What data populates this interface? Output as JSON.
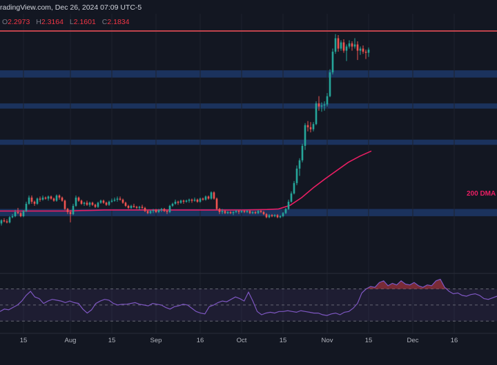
{
  "header": {
    "source": "radingView.com, Dec 26, 2024 07:09 UTC-5",
    "ohlc": [
      {
        "k": "O",
        "v": "2.2973"
      },
      {
        "k": "H",
        "v": "2.3164"
      },
      {
        "k": "L",
        "v": "2.1601"
      },
      {
        "k": "C",
        "v": "2.1834"
      }
    ]
  },
  "colors": {
    "background": "#131722",
    "up": "#26a69a",
    "down": "#ef5350",
    "zone": "#1e3a6e",
    "resistance_line": "#c2444d",
    "ma": "#e91e63",
    "rsi": "#7e57c2",
    "rsi_overbought_fill": "#8b2f3a"
  },
  "chart_data": {
    "type": "candlestick",
    "title": "",
    "ylabel": "",
    "ylim": [
      0.2,
      2.45
    ],
    "xlim": [
      0,
      180
    ],
    "x_ticks": [
      {
        "label": "15",
        "i": 8
      },
      {
        "label": "Aug",
        "i": 25
      },
      {
        "label": "15",
        "i": 40
      },
      {
        "label": "Sep",
        "i": 56
      },
      {
        "label": "16",
        "i": 72
      },
      {
        "label": "Oct",
        "i": 87
      },
      {
        "label": "15",
        "i": 102
      },
      {
        "label": "Nov",
        "i": 118
      },
      {
        "label": "15",
        "i": 133
      },
      {
        "label": "Dec",
        "i": 149
      },
      {
        "label": "16",
        "i": 164
      }
    ],
    "horizontal_lines": [
      2.35
    ],
    "zones": [
      {
        "from": 1.9,
        "to": 1.97
      },
      {
        "from": 1.6,
        "to": 1.65
      },
      {
        "from": 1.25,
        "to": 1.3
      },
      {
        "from": 0.56,
        "to": 0.63
      }
    ],
    "moving_average": {
      "label": "200 DMA",
      "values": [
        0.61,
        0.61,
        0.61,
        0.61,
        0.61,
        0.61,
        0.61,
        0.615,
        0.617,
        0.62,
        0.62,
        0.62,
        0.62,
        0.62,
        0.62,
        0.62,
        0.62,
        0.62,
        0.62,
        0.62,
        0.62,
        0.62,
        0.622,
        0.625,
        0.63,
        0.665,
        0.74,
        0.835,
        0.92,
        1.0,
        1.08,
        1.14,
        1.19
      ]
    },
    "ohlc": [
      [
        0.49,
        0.53,
        0.47,
        0.52
      ],
      [
        0.52,
        0.54,
        0.5,
        0.51
      ],
      [
        0.51,
        0.53,
        0.49,
        0.5
      ],
      [
        0.5,
        0.56,
        0.49,
        0.55
      ],
      [
        0.55,
        0.58,
        0.54,
        0.56
      ],
      [
        0.56,
        0.62,
        0.55,
        0.6
      ],
      [
        0.6,
        0.64,
        0.58,
        0.59
      ],
      [
        0.59,
        0.6,
        0.55,
        0.56
      ],
      [
        0.56,
        0.62,
        0.55,
        0.61
      ],
      [
        0.61,
        0.7,
        0.6,
        0.68
      ],
      [
        0.68,
        0.76,
        0.67,
        0.74
      ],
      [
        0.74,
        0.76,
        0.68,
        0.7
      ],
      [
        0.7,
        0.71,
        0.66,
        0.68
      ],
      [
        0.68,
        0.74,
        0.67,
        0.73
      ],
      [
        0.73,
        0.75,
        0.7,
        0.72
      ],
      [
        0.72,
        0.76,
        0.71,
        0.74
      ],
      [
        0.74,
        0.75,
        0.72,
        0.73
      ],
      [
        0.73,
        0.76,
        0.71,
        0.75
      ],
      [
        0.75,
        0.76,
        0.72,
        0.73
      ],
      [
        0.73,
        0.74,
        0.7,
        0.71
      ],
      [
        0.71,
        0.77,
        0.7,
        0.76
      ],
      [
        0.76,
        0.77,
        0.72,
        0.74
      ],
      [
        0.74,
        0.75,
        0.7,
        0.71
      ],
      [
        0.71,
        0.72,
        0.62,
        0.63
      ],
      [
        0.63,
        0.64,
        0.58,
        0.6
      ],
      [
        0.6,
        0.62,
        0.5,
        0.58
      ],
      [
        0.58,
        0.68,
        0.57,
        0.66
      ],
      [
        0.66,
        0.76,
        0.65,
        0.74
      ],
      [
        0.74,
        0.75,
        0.7,
        0.71
      ],
      [
        0.71,
        0.72,
        0.67,
        0.68
      ],
      [
        0.68,
        0.7,
        0.66,
        0.69
      ],
      [
        0.69,
        0.71,
        0.66,
        0.67
      ],
      [
        0.67,
        0.7,
        0.65,
        0.69
      ],
      [
        0.69,
        0.7,
        0.66,
        0.67
      ],
      [
        0.67,
        0.68,
        0.64,
        0.65
      ],
      [
        0.65,
        0.7,
        0.64,
        0.69
      ],
      [
        0.69,
        0.72,
        0.68,
        0.71
      ],
      [
        0.71,
        0.72,
        0.68,
        0.69
      ],
      [
        0.69,
        0.7,
        0.66,
        0.67
      ],
      [
        0.67,
        0.71,
        0.66,
        0.7
      ],
      [
        0.7,
        0.73,
        0.69,
        0.71
      ],
      [
        0.71,
        0.74,
        0.7,
        0.72
      ],
      [
        0.72,
        0.75,
        0.7,
        0.73
      ],
      [
        0.73,
        0.75,
        0.71,
        0.72
      ],
      [
        0.72,
        0.73,
        0.68,
        0.69
      ],
      [
        0.69,
        0.7,
        0.65,
        0.66
      ],
      [
        0.66,
        0.67,
        0.63,
        0.64
      ],
      [
        0.64,
        0.67,
        0.63,
        0.66
      ],
      [
        0.66,
        0.68,
        0.64,
        0.65
      ],
      [
        0.65,
        0.66,
        0.63,
        0.64
      ],
      [
        0.64,
        0.66,
        0.62,
        0.65
      ],
      [
        0.65,
        0.67,
        0.63,
        0.64
      ],
      [
        0.64,
        0.65,
        0.6,
        0.61
      ],
      [
        0.61,
        0.62,
        0.58,
        0.59
      ],
      [
        0.59,
        0.62,
        0.58,
        0.61
      ],
      [
        0.61,
        0.63,
        0.59,
        0.62
      ],
      [
        0.62,
        0.63,
        0.59,
        0.6
      ],
      [
        0.6,
        0.63,
        0.59,
        0.62
      ],
      [
        0.62,
        0.64,
        0.6,
        0.63
      ],
      [
        0.63,
        0.64,
        0.6,
        0.61
      ],
      [
        0.61,
        0.62,
        0.58,
        0.6
      ],
      [
        0.6,
        0.67,
        0.59,
        0.66
      ],
      [
        0.66,
        0.69,
        0.65,
        0.68
      ],
      [
        0.68,
        0.72,
        0.67,
        0.7
      ],
      [
        0.7,
        0.71,
        0.67,
        0.69
      ],
      [
        0.69,
        0.72,
        0.68,
        0.71
      ],
      [
        0.71,
        0.72,
        0.68,
        0.7
      ],
      [
        0.7,
        0.72,
        0.69,
        0.71
      ],
      [
        0.71,
        0.73,
        0.69,
        0.72
      ],
      [
        0.72,
        0.73,
        0.69,
        0.71
      ],
      [
        0.71,
        0.74,
        0.7,
        0.72
      ],
      [
        0.72,
        0.73,
        0.69,
        0.7
      ],
      [
        0.7,
        0.74,
        0.69,
        0.73
      ],
      [
        0.73,
        0.74,
        0.71,
        0.72
      ],
      [
        0.72,
        0.76,
        0.71,
        0.75
      ],
      [
        0.75,
        0.76,
        0.72,
        0.73
      ],
      [
        0.73,
        0.8,
        0.72,
        0.79
      ],
      [
        0.79,
        0.8,
        0.72,
        0.73
      ],
      [
        0.73,
        0.74,
        0.62,
        0.63
      ],
      [
        0.63,
        0.64,
        0.58,
        0.6
      ],
      [
        0.6,
        0.63,
        0.58,
        0.61
      ],
      [
        0.61,
        0.62,
        0.58,
        0.59
      ],
      [
        0.59,
        0.61,
        0.58,
        0.6
      ],
      [
        0.6,
        0.61,
        0.58,
        0.59
      ],
      [
        0.59,
        0.61,
        0.57,
        0.6
      ],
      [
        0.6,
        0.62,
        0.59,
        0.61
      ],
      [
        0.61,
        0.62,
        0.58,
        0.6
      ],
      [
        0.6,
        0.62,
        0.59,
        0.61
      ],
      [
        0.61,
        0.62,
        0.59,
        0.6
      ],
      [
        0.6,
        0.62,
        0.59,
        0.61
      ],
      [
        0.61,
        0.62,
        0.58,
        0.59
      ],
      [
        0.59,
        0.61,
        0.58,
        0.6
      ],
      [
        0.6,
        0.61,
        0.58,
        0.59
      ],
      [
        0.59,
        0.62,
        0.58,
        0.61
      ],
      [
        0.61,
        0.62,
        0.59,
        0.6
      ],
      [
        0.6,
        0.61,
        0.57,
        0.58
      ],
      [
        0.58,
        0.59,
        0.54,
        0.55
      ],
      [
        0.55,
        0.58,
        0.54,
        0.57
      ],
      [
        0.57,
        0.58,
        0.55,
        0.56
      ],
      [
        0.56,
        0.58,
        0.55,
        0.57
      ],
      [
        0.57,
        0.58,
        0.54,
        0.55
      ],
      [
        0.55,
        0.57,
        0.54,
        0.56
      ],
      [
        0.56,
        0.6,
        0.55,
        0.59
      ],
      [
        0.59,
        0.64,
        0.58,
        0.63
      ],
      [
        0.63,
        0.72,
        0.62,
        0.7
      ],
      [
        0.7,
        0.8,
        0.69,
        0.78
      ],
      [
        0.78,
        0.9,
        0.77,
        0.88
      ],
      [
        0.88,
        1.05,
        0.86,
        1.02
      ],
      [
        1.02,
        1.12,
        0.95,
        1.1
      ],
      [
        1.1,
        1.26,
        1.08,
        1.24
      ],
      [
        1.24,
        1.46,
        1.2,
        1.44
      ],
      [
        1.44,
        1.48,
        1.38,
        1.42
      ],
      [
        1.42,
        1.47,
        1.37,
        1.4
      ],
      [
        1.4,
        1.47,
        1.38,
        1.45
      ],
      [
        1.45,
        1.67,
        1.44,
        1.65
      ],
      [
        1.65,
        1.72,
        1.58,
        1.62
      ],
      [
        1.62,
        1.66,
        1.57,
        1.63
      ],
      [
        1.63,
        1.67,
        1.58,
        1.64
      ],
      [
        1.64,
        1.75,
        1.62,
        1.72
      ],
      [
        1.72,
        1.98,
        1.71,
        1.95
      ],
      [
        1.95,
        2.18,
        1.93,
        2.15
      ],
      [
        2.15,
        2.32,
        2.13,
        2.28
      ],
      [
        2.28,
        2.31,
        2.15,
        2.18
      ],
      [
        2.18,
        2.26,
        2.16,
        2.24
      ],
      [
        2.24,
        2.27,
        2.14,
        2.16
      ],
      [
        2.16,
        2.22,
        2.06,
        2.2
      ],
      [
        2.2,
        2.26,
        2.18,
        2.23
      ],
      [
        2.23,
        2.25,
        2.16,
        2.2
      ],
      [
        2.2,
        2.28,
        2.18,
        2.22
      ],
      [
        2.22,
        2.25,
        2.07,
        2.16
      ],
      [
        2.16,
        2.2,
        2.12,
        2.18
      ],
      [
        2.18,
        2.21,
        2.13,
        2.15
      ],
      [
        2.15,
        2.17,
        2.08,
        2.14
      ],
      [
        2.14,
        2.19,
        2.1,
        2.17
      ]
    ],
    "rsi": {
      "ylim": [
        20,
        85
      ],
      "overbought": 70,
      "midline": 50,
      "oversold": 30,
      "values": [
        42,
        45,
        44,
        47,
        50,
        55,
        62,
        67,
        60,
        58,
        52,
        55,
        57,
        56,
        55,
        53,
        55,
        53,
        52,
        45,
        40,
        44,
        52,
        55,
        57,
        56,
        52,
        50,
        51,
        51,
        52,
        53,
        51,
        50,
        49,
        52,
        51,
        50,
        47,
        45,
        48,
        49,
        51,
        50,
        46,
        42,
        40,
        39,
        48,
        50,
        53,
        55,
        54,
        57,
        60,
        58,
        55,
        66,
        55,
        42,
        38,
        40,
        41,
        40,
        42,
        42,
        43,
        42,
        41,
        43,
        42,
        41,
        40,
        40,
        38,
        37,
        39,
        40,
        38,
        41,
        42,
        46,
        52,
        65,
        70,
        73,
        72,
        78,
        80,
        74,
        77,
        75,
        80,
        76,
        75,
        78,
        74,
        72,
        75,
        74,
        80,
        82,
        72,
        67,
        64,
        65,
        62,
        61,
        63,
        64,
        62,
        58,
        57,
        59,
        61
      ]
    }
  },
  "annotations": {
    "ma_label": "200 DMA"
  }
}
